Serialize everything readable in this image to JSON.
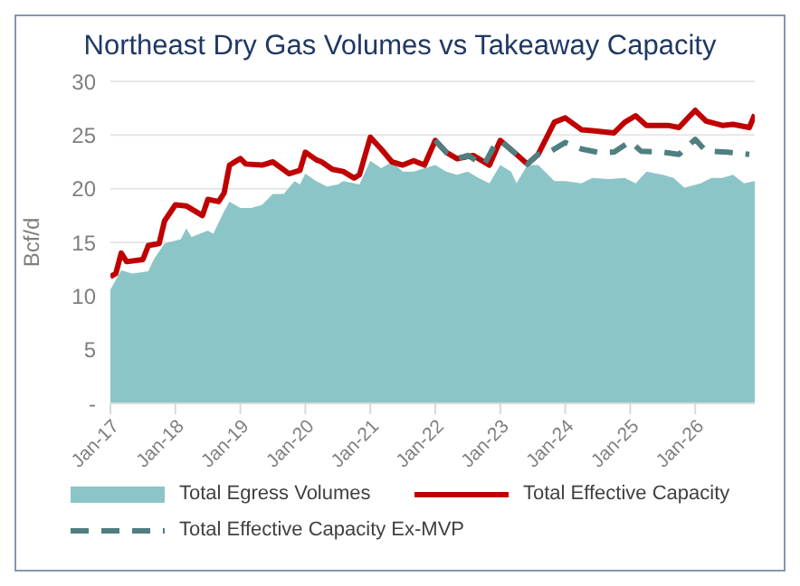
{
  "chart_data": {
    "type": "line",
    "title": "Northeast Dry Gas Volumes vs Takeaway Capacity",
    "ylabel": "Bcf/d",
    "xlim": [
      "2017-01",
      "2026-12"
    ],
    "xticks": [
      {
        "value": "2017-01",
        "label": "Jan-17"
      },
      {
        "value": "2018-01",
        "label": "Jan-18"
      },
      {
        "value": "2019-01",
        "label": "Jan-19"
      },
      {
        "value": "2020-01",
        "label": "Jan-20"
      },
      {
        "value": "2021-01",
        "label": "Jan-21"
      },
      {
        "value": "2022-01",
        "label": "Jan-22"
      },
      {
        "value": "2023-01",
        "label": "Jan-23"
      },
      {
        "value": "2024-01",
        "label": "Jan-24"
      },
      {
        "value": "2025-01",
        "label": "Jan-25"
      },
      {
        "value": "2026-01",
        "label": "Jan-26"
      }
    ],
    "ylim": [
      0,
      30
    ],
    "yticks": [
      {
        "value": 0,
        "label": "-"
      },
      5,
      10,
      15,
      20,
      25,
      30
    ],
    "grid": "y",
    "legend": "bottom",
    "series": [
      {
        "name": "Total Egress Volumes",
        "type": "area",
        "color": "#8cc5c7",
        "x": [
          "2017-01",
          "2017-03",
          "2017-05",
          "2017-08",
          "2017-09",
          "2017-11",
          "2018-02",
          "2018-03",
          "2018-04",
          "2018-07",
          "2018-08",
          "2018-10",
          "2018-11",
          "2019-01",
          "2019-03",
          "2019-05",
          "2019-07",
          "2019-09",
          "2019-11",
          "2019-12",
          "2020-01",
          "2020-03",
          "2020-05",
          "2020-07",
          "2020-08",
          "2020-11",
          "2021-01",
          "2021-03",
          "2021-05",
          "2021-07",
          "2021-09",
          "2021-11",
          "2022-01",
          "2022-03",
          "2022-05",
          "2022-07",
          "2022-09",
          "2022-11",
          "2023-01",
          "2023-03",
          "2023-04",
          "2023-06",
          "2023-08",
          "2023-11",
          "2024-01",
          "2024-04",
          "2024-06",
          "2024-09",
          "2024-12",
          "2025-02",
          "2025-04",
          "2025-07",
          "2025-09",
          "2025-11",
          "2026-02",
          "2026-04",
          "2026-06",
          "2026-08",
          "2026-10",
          "2026-12"
        ],
        "values": [
          10.6,
          12.4,
          12.1,
          12.3,
          13.4,
          14.9,
          15.3,
          16.3,
          15.5,
          16.1,
          15.8,
          17.9,
          18.8,
          18.2,
          18.2,
          18.5,
          19.5,
          19.5,
          20.7,
          20.4,
          21.4,
          20.7,
          20.2,
          20.4,
          20.7,
          20.4,
          22.6,
          21.9,
          22.5,
          21.6,
          21.6,
          21.9,
          22.2,
          21.6,
          21.3,
          21.6,
          21.0,
          20.5,
          22.2,
          21.6,
          20.5,
          22.2,
          22.2,
          20.7,
          20.7,
          20.5,
          21.0,
          20.9,
          21.0,
          20.5,
          21.6,
          21.3,
          21.0,
          20.1,
          20.5,
          21.0,
          21.0,
          21.3,
          20.5,
          20.7
        ]
      },
      {
        "name": "Total Effective Capacity",
        "type": "line",
        "color": "#c00000",
        "line_style": "solid",
        "x": [
          "2017-01",
          "2017-02",
          "2017-03",
          "2017-04",
          "2017-07",
          "2017-08",
          "2017-10",
          "2017-11",
          "2018-01",
          "2018-03",
          "2018-06",
          "2018-07",
          "2018-09",
          "2018-10",
          "2018-11",
          "2019-01",
          "2019-02",
          "2019-05",
          "2019-07",
          "2019-10",
          "2019-12",
          "2020-01",
          "2020-03",
          "2020-04",
          "2020-06",
          "2020-08",
          "2020-10",
          "2020-11",
          "2021-01",
          "2021-03",
          "2021-05",
          "2021-07",
          "2021-09",
          "2021-11",
          "2022-01",
          "2022-03",
          "2022-05",
          "2022-08",
          "2022-11",
          "2023-01",
          "2023-04",
          "2023-06",
          "2023-08",
          "2023-11",
          "2024-01",
          "2024-04",
          "2024-06",
          "2024-10",
          "2024-12",
          "2025-02",
          "2025-04",
          "2025-08",
          "2025-10",
          "2026-01",
          "2026-03",
          "2026-06",
          "2026-08",
          "2026-11",
          "2026-12"
        ],
        "values": [
          11.8,
          12.1,
          14.0,
          13.2,
          13.4,
          14.7,
          14.9,
          17.0,
          18.5,
          18.4,
          17.5,
          19.0,
          18.8,
          19.6,
          22.2,
          22.8,
          22.3,
          22.2,
          22.5,
          21.4,
          21.7,
          23.4,
          22.7,
          22.5,
          21.8,
          21.6,
          21.0,
          21.3,
          24.8,
          23.7,
          22.5,
          22.2,
          22.6,
          22.2,
          24.5,
          23.4,
          22.8,
          23.1,
          22.2,
          24.5,
          23.2,
          22.3,
          23.2,
          26.2,
          26.6,
          25.5,
          25.4,
          25.2,
          26.2,
          26.8,
          25.9,
          25.9,
          25.7,
          27.3,
          26.3,
          25.9,
          26.0,
          25.7,
          26.9
        ]
      },
      {
        "name": "Total Effective Capacity Ex-MVP",
        "type": "line",
        "color": "#4f7f80",
        "line_style": "dashed",
        "x": [
          "2022-01",
          "2022-03",
          "2022-05",
          "2022-07",
          "2022-10",
          "2022-12",
          "2023-01",
          "2023-04",
          "2023-06",
          "2023-08",
          "2023-10",
          "2024-01",
          "2024-04",
          "2024-07",
          "2024-10",
          "2025-01",
          "2025-03",
          "2025-07",
          "2025-10",
          "2026-01",
          "2026-03",
          "2026-07",
          "2026-11"
        ],
        "values": [
          24.5,
          23.4,
          22.8,
          23.1,
          22.2,
          24.1,
          24.5,
          23.2,
          22.3,
          23.2,
          23.4,
          24.3,
          23.7,
          23.4,
          23.4,
          24.4,
          23.5,
          23.4,
          23.2,
          24.6,
          23.5,
          23.4,
          23.2
        ]
      }
    ]
  }
}
